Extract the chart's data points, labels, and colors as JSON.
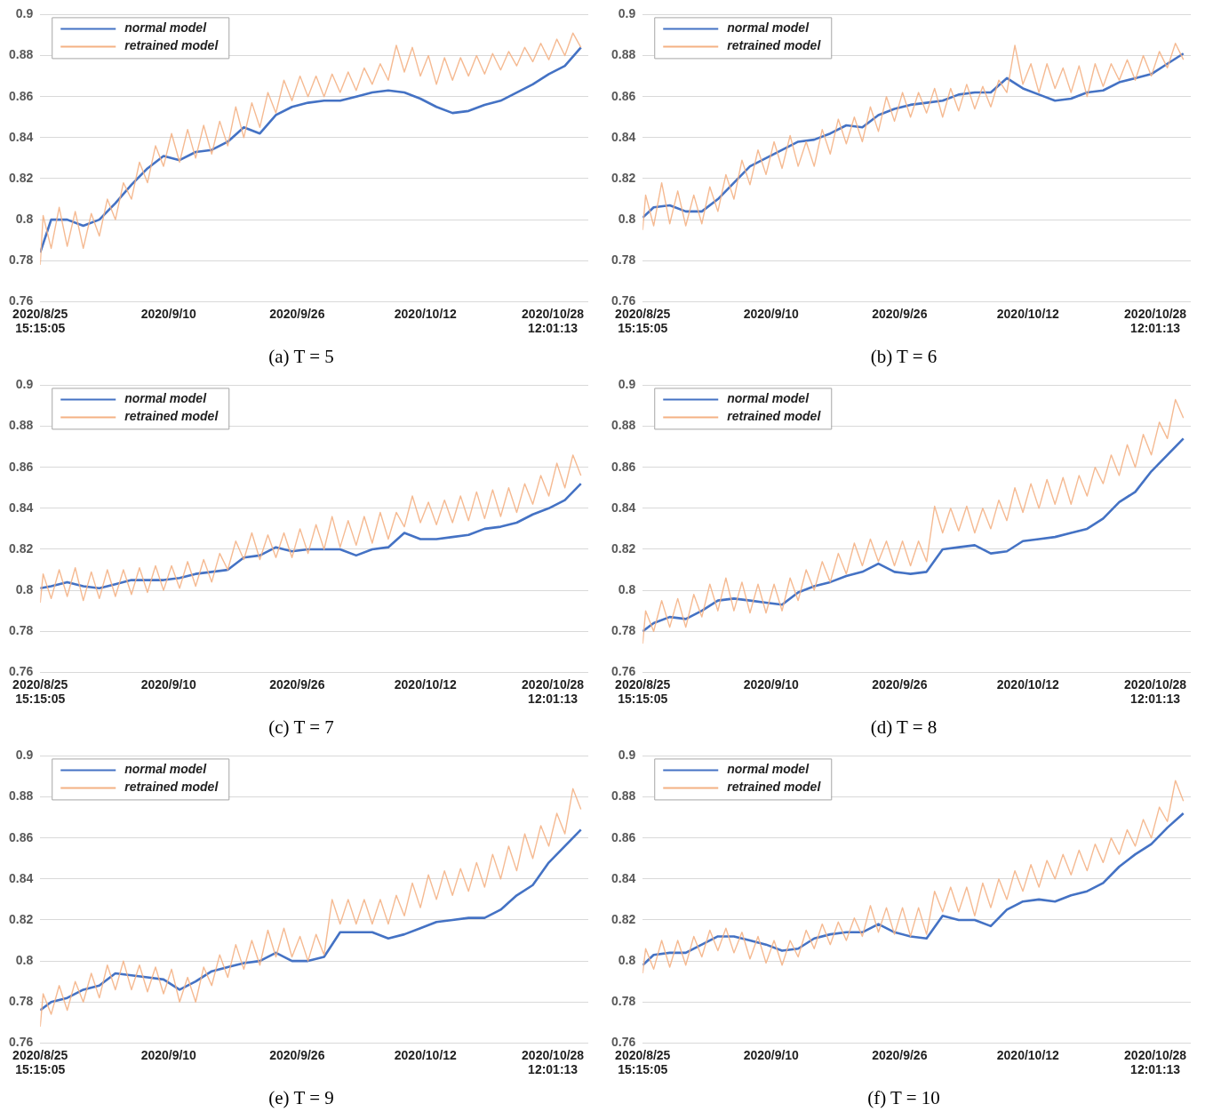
{
  "chart_data": [
    {
      "type": "line",
      "title": "(a) T = 5",
      "ylim": [
        0.76,
        0.9
      ],
      "yticks": [
        0.76,
        0.78,
        0.8,
        0.82,
        0.84,
        0.86,
        0.88,
        0.9
      ],
      "grid": "y",
      "legend": "top left",
      "marker": "none",
      "xlim": [
        "2020-08-25T15:15",
        "2020-11-01T22:00"
      ],
      "xticks": [
        {
          "value": "2020-08-25T15:15",
          "label": "2020/8/25 15:15:05"
        },
        {
          "value": "2020-09-10T15:15",
          "label": "2020/9/10"
        },
        {
          "value": "2020-09-26T15:15",
          "label": "2020/9/26"
        },
        {
          "value": "2020-10-12T15:15",
          "label": "2020/10/12"
        },
        {
          "value": "2020-10-28T12:01",
          "label": "2020/10/28 12:01:13"
        }
      ],
      "x": [
        "2020-08-25T15:15",
        "2020-08-26",
        "2020-08-27",
        "2020-08-28",
        "2020-08-29",
        "2020-08-30",
        "2020-08-31",
        "2020-09-01",
        "2020-09-02",
        "2020-09-03",
        "2020-09-04",
        "2020-09-05",
        "2020-09-06",
        "2020-09-07",
        "2020-09-08",
        "2020-09-09",
        "2020-09-10",
        "2020-09-11",
        "2020-09-12",
        "2020-09-13",
        "2020-09-14",
        "2020-09-15",
        "2020-09-16",
        "2020-09-17",
        "2020-09-18",
        "2020-09-19",
        "2020-09-20",
        "2020-09-21",
        "2020-09-22",
        "2020-09-23",
        "2020-09-24",
        "2020-09-25",
        "2020-09-26",
        "2020-09-27",
        "2020-09-28",
        "2020-09-29",
        "2020-09-30",
        "2020-10-01",
        "2020-10-02",
        "2020-10-03",
        "2020-10-04",
        "2020-10-05",
        "2020-10-06",
        "2020-10-07",
        "2020-10-08",
        "2020-10-09",
        "2020-10-10",
        "2020-10-11",
        "2020-10-12",
        "2020-10-13",
        "2020-10-14",
        "2020-10-15",
        "2020-10-16",
        "2020-10-17",
        "2020-10-18",
        "2020-10-19",
        "2020-10-20",
        "2020-10-21",
        "2020-10-22",
        "2020-10-23",
        "2020-10-24",
        "2020-10-25",
        "2020-10-26",
        "2020-10-27",
        "2020-10-28",
        "2020-10-29",
        "2020-10-30",
        "2020-10-31",
        "2020-11-01"
      ],
      "series": [
        {
          "name": "normal model",
          "color": "#4472c4",
          "x": [
            "2020-08-25T15:15",
            "2020-08-27",
            "2020-08-29",
            "2020-08-31",
            "2020-09-02",
            "2020-09-04",
            "2020-09-06",
            "2020-09-08",
            "2020-09-10",
            "2020-09-12",
            "2020-09-14",
            "2020-09-16",
            "2020-09-18",
            "2020-09-20",
            "2020-09-22",
            "2020-09-24",
            "2020-09-26",
            "2020-09-28",
            "2020-09-30",
            "2020-10-02",
            "2020-10-04",
            "2020-10-06",
            "2020-10-08",
            "2020-10-10",
            "2020-10-12",
            "2020-10-14",
            "2020-10-16",
            "2020-10-18",
            "2020-10-20",
            "2020-10-22",
            "2020-10-24",
            "2020-10-26",
            "2020-10-28",
            "2020-10-30",
            "2020-11-01"
          ],
          "values": [
            0.784,
            0.8,
            0.8,
            0.797,
            0.8,
            0.808,
            0.817,
            0.825,
            0.831,
            0.829,
            0.833,
            0.834,
            0.838,
            0.845,
            0.842,
            0.851,
            0.855,
            0.857,
            0.858,
            0.858,
            0.86,
            0.862,
            0.863,
            0.862,
            0.859,
            0.855,
            0.852,
            0.853,
            0.856,
            0.858,
            0.862,
            0.866,
            0.871,
            0.875,
            0.884
          ]
        },
        {
          "name": "retrained model",
          "color": "#f4b183",
          "values": [
            0.778,
            0.802,
            0.786,
            0.806,
            0.787,
            0.804,
            0.786,
            0.803,
            0.792,
            0.81,
            0.8,
            0.818,
            0.81,
            0.828,
            0.818,
            0.836,
            0.826,
            0.842,
            0.828,
            0.844,
            0.83,
            0.846,
            0.832,
            0.848,
            0.836,
            0.855,
            0.84,
            0.857,
            0.845,
            0.862,
            0.852,
            0.868,
            0.858,
            0.87,
            0.86,
            0.87,
            0.86,
            0.871,
            0.862,
            0.872,
            0.863,
            0.874,
            0.866,
            0.876,
            0.868,
            0.885,
            0.872,
            0.884,
            0.87,
            0.88,
            0.866,
            0.879,
            0.868,
            0.879,
            0.87,
            0.88,
            0.871,
            0.881,
            0.873,
            0.882,
            0.875,
            0.884,
            0.877,
            0.886,
            0.878,
            0.888,
            0.88,
            0.891,
            0.884
          ]
        }
      ]
    },
    {
      "type": "line",
      "title": "(b) T = 6",
      "ylim": [
        0.76,
        0.9
      ],
      "yticks": [
        0.76,
        0.78,
        0.8,
        0.82,
        0.84,
        0.86,
        0.88,
        0.9
      ],
      "grid": "y",
      "legend": "top left",
      "marker": "none",
      "xlim": [
        "2020-08-25T15:15",
        "2020-11-01T22:00"
      ],
      "xticks": [
        {
          "value": "2020-08-25T15:15",
          "label": "2020/8/25 15:15:05"
        },
        {
          "value": "2020-09-10T15:15",
          "label": "2020/9/10"
        },
        {
          "value": "2020-09-26T15:15",
          "label": "2020/9/26"
        },
        {
          "value": "2020-10-12T15:15",
          "label": "2020/10/12"
        },
        {
          "value": "2020-10-28T12:01",
          "label": "2020/10/28 12:01:13"
        }
      ],
      "x": [
        "2020-08-25T15:15",
        "2020-08-26",
        "2020-08-27",
        "2020-08-28",
        "2020-08-29",
        "2020-08-30",
        "2020-08-31",
        "2020-09-01",
        "2020-09-02",
        "2020-09-03",
        "2020-09-04",
        "2020-09-05",
        "2020-09-06",
        "2020-09-07",
        "2020-09-08",
        "2020-09-09",
        "2020-09-10",
        "2020-09-11",
        "2020-09-12",
        "2020-09-13",
        "2020-09-14",
        "2020-09-15",
        "2020-09-16",
        "2020-09-17",
        "2020-09-18",
        "2020-09-19",
        "2020-09-20",
        "2020-09-21",
        "2020-09-22",
        "2020-09-23",
        "2020-09-24",
        "2020-09-25",
        "2020-09-26",
        "2020-09-27",
        "2020-09-28",
        "2020-09-29",
        "2020-09-30",
        "2020-10-01",
        "2020-10-02",
        "2020-10-03",
        "2020-10-04",
        "2020-10-05",
        "2020-10-06",
        "2020-10-07",
        "2020-10-08",
        "2020-10-09",
        "2020-10-10",
        "2020-10-11",
        "2020-10-12",
        "2020-10-13",
        "2020-10-14",
        "2020-10-15",
        "2020-10-16",
        "2020-10-17",
        "2020-10-18",
        "2020-10-19",
        "2020-10-20",
        "2020-10-21",
        "2020-10-22",
        "2020-10-23",
        "2020-10-24",
        "2020-10-25",
        "2020-10-26",
        "2020-10-27",
        "2020-10-28",
        "2020-10-29",
        "2020-10-30",
        "2020-10-31",
        "2020-11-01"
      ],
      "series": [
        {
          "name": "normal model",
          "color": "#4472c4",
          "x": [
            "2020-08-25T15:15",
            "2020-08-27",
            "2020-08-29",
            "2020-08-31",
            "2020-09-02",
            "2020-09-04",
            "2020-09-06",
            "2020-09-08",
            "2020-09-10",
            "2020-09-12",
            "2020-09-14",
            "2020-09-16",
            "2020-09-18",
            "2020-09-20",
            "2020-09-22",
            "2020-09-24",
            "2020-09-26",
            "2020-09-28",
            "2020-09-30",
            "2020-10-02",
            "2020-10-04",
            "2020-10-06",
            "2020-10-08",
            "2020-10-10",
            "2020-10-12",
            "2020-10-14",
            "2020-10-16",
            "2020-10-18",
            "2020-10-20",
            "2020-10-22",
            "2020-10-24",
            "2020-10-26",
            "2020-10-28",
            "2020-10-30",
            "2020-11-01"
          ],
          "values": [
            0.801,
            0.806,
            0.807,
            0.804,
            0.804,
            0.81,
            0.818,
            0.826,
            0.83,
            0.834,
            0.838,
            0.839,
            0.842,
            0.846,
            0.845,
            0.851,
            0.854,
            0.856,
            0.857,
            0.858,
            0.861,
            0.862,
            0.862,
            0.869,
            0.864,
            0.861,
            0.858,
            0.859,
            0.862,
            0.863,
            0.867,
            0.869,
            0.871,
            0.876,
            0.881
          ]
        },
        {
          "name": "retrained model",
          "color": "#f4b183",
          "values": [
            0.795,
            0.812,
            0.797,
            0.818,
            0.798,
            0.814,
            0.797,
            0.812,
            0.798,
            0.816,
            0.804,
            0.822,
            0.81,
            0.829,
            0.817,
            0.834,
            0.822,
            0.838,
            0.825,
            0.841,
            0.826,
            0.838,
            0.826,
            0.844,
            0.832,
            0.849,
            0.837,
            0.85,
            0.838,
            0.855,
            0.843,
            0.86,
            0.848,
            0.862,
            0.85,
            0.862,
            0.852,
            0.864,
            0.85,
            0.864,
            0.853,
            0.866,
            0.854,
            0.865,
            0.855,
            0.868,
            0.862,
            0.885,
            0.866,
            0.876,
            0.862,
            0.876,
            0.864,
            0.874,
            0.862,
            0.875,
            0.86,
            0.876,
            0.865,
            0.876,
            0.868,
            0.878,
            0.868,
            0.88,
            0.87,
            0.882,
            0.874,
            0.886,
            0.878
          ]
        }
      ]
    },
    {
      "type": "line",
      "title": "(c) T = 7",
      "ylim": [
        0.76,
        0.9
      ],
      "yticks": [
        0.76,
        0.78,
        0.8,
        0.82,
        0.84,
        0.86,
        0.88,
        0.9
      ],
      "grid": "y",
      "legend": "top left",
      "marker": "none",
      "xlim": [
        "2020-08-25T15:15",
        "2020-11-01T22:00"
      ],
      "xticks": [
        {
          "value": "2020-08-25T15:15",
          "label": "2020/8/25 15:15:05"
        },
        {
          "value": "2020-09-10T15:15",
          "label": "2020/9/10"
        },
        {
          "value": "2020-09-26T15:15",
          "label": "2020/9/26"
        },
        {
          "value": "2020-10-12T15:15",
          "label": "2020/10/12"
        },
        {
          "value": "2020-10-28T12:01",
          "label": "2020/10/28 12:01:13"
        }
      ],
      "x": [
        "2020-08-25T15:15",
        "2020-08-26",
        "2020-08-27",
        "2020-08-28",
        "2020-08-29",
        "2020-08-30",
        "2020-08-31",
        "2020-09-01",
        "2020-09-02",
        "2020-09-03",
        "2020-09-04",
        "2020-09-05",
        "2020-09-06",
        "2020-09-07",
        "2020-09-08",
        "2020-09-09",
        "2020-09-10",
        "2020-09-11",
        "2020-09-12",
        "2020-09-13",
        "2020-09-14",
        "2020-09-15",
        "2020-09-16",
        "2020-09-17",
        "2020-09-18",
        "2020-09-19",
        "2020-09-20",
        "2020-09-21",
        "2020-09-22",
        "2020-09-23",
        "2020-09-24",
        "2020-09-25",
        "2020-09-26",
        "2020-09-27",
        "2020-09-28",
        "2020-09-29",
        "2020-09-30",
        "2020-10-01",
        "2020-10-02",
        "2020-10-03",
        "2020-10-04",
        "2020-10-05",
        "2020-10-06",
        "2020-10-07",
        "2020-10-08",
        "2020-10-09",
        "2020-10-10",
        "2020-10-11",
        "2020-10-12",
        "2020-10-13",
        "2020-10-14",
        "2020-10-15",
        "2020-10-16",
        "2020-10-17",
        "2020-10-18",
        "2020-10-19",
        "2020-10-20",
        "2020-10-21",
        "2020-10-22",
        "2020-10-23",
        "2020-10-24",
        "2020-10-25",
        "2020-10-26",
        "2020-10-27",
        "2020-10-28",
        "2020-10-29",
        "2020-10-30",
        "2020-10-31",
        "2020-11-01"
      ],
      "series": [
        {
          "name": "normal model",
          "color": "#4472c4",
          "x": [
            "2020-08-25T15:15",
            "2020-08-27",
            "2020-08-29",
            "2020-08-31",
            "2020-09-02",
            "2020-09-04",
            "2020-09-06",
            "2020-09-08",
            "2020-09-10",
            "2020-09-12",
            "2020-09-14",
            "2020-09-16",
            "2020-09-18",
            "2020-09-20",
            "2020-09-22",
            "2020-09-24",
            "2020-09-26",
            "2020-09-28",
            "2020-09-30",
            "2020-10-02",
            "2020-10-04",
            "2020-10-06",
            "2020-10-08",
            "2020-10-10",
            "2020-10-12",
            "2020-10-14",
            "2020-10-16",
            "2020-10-18",
            "2020-10-20",
            "2020-10-22",
            "2020-10-24",
            "2020-10-26",
            "2020-10-28",
            "2020-10-30",
            "2020-11-01"
          ],
          "values": [
            0.801,
            0.802,
            0.804,
            0.802,
            0.801,
            0.803,
            0.805,
            0.805,
            0.805,
            0.806,
            0.808,
            0.809,
            0.81,
            0.816,
            0.817,
            0.821,
            0.819,
            0.82,
            0.82,
            0.82,
            0.817,
            0.82,
            0.821,
            0.828,
            0.825,
            0.825,
            0.826,
            0.827,
            0.83,
            0.831,
            0.833,
            0.837,
            0.84,
            0.844,
            0.852
          ]
        },
        {
          "name": "retrained model",
          "color": "#f4b183",
          "values": [
            0.794,
            0.808,
            0.796,
            0.81,
            0.797,
            0.811,
            0.795,
            0.809,
            0.796,
            0.81,
            0.797,
            0.81,
            0.798,
            0.811,
            0.799,
            0.812,
            0.8,
            0.812,
            0.801,
            0.814,
            0.802,
            0.815,
            0.804,
            0.818,
            0.81,
            0.824,
            0.815,
            0.828,
            0.815,
            0.827,
            0.816,
            0.828,
            0.816,
            0.83,
            0.818,
            0.832,
            0.82,
            0.836,
            0.821,
            0.834,
            0.822,
            0.836,
            0.823,
            0.838,
            0.825,
            0.838,
            0.831,
            0.846,
            0.833,
            0.843,
            0.832,
            0.844,
            0.833,
            0.846,
            0.834,
            0.848,
            0.835,
            0.849,
            0.836,
            0.85,
            0.838,
            0.852,
            0.842,
            0.856,
            0.846,
            0.862,
            0.85,
            0.866,
            0.856
          ]
        }
      ]
    },
    {
      "type": "line",
      "title": "(d) T = 8",
      "ylim": [
        0.76,
        0.9
      ],
      "yticks": [
        0.76,
        0.78,
        0.8,
        0.82,
        0.84,
        0.86,
        0.88,
        0.9
      ],
      "grid": "y",
      "legend": "top left",
      "marker": "none",
      "xlim": [
        "2020-08-25T15:15",
        "2020-11-01T22:00"
      ],
      "xticks": [
        {
          "value": "2020-08-25T15:15",
          "label": "2020/8/25 15:15:05"
        },
        {
          "value": "2020-09-10T15:15",
          "label": "2020/9/10"
        },
        {
          "value": "2020-09-26T15:15",
          "label": "2020/9/26"
        },
        {
          "value": "2020-10-12T15:15",
          "label": "2020/10/12"
        },
        {
          "value": "2020-10-28T12:01",
          "label": "2020/10/28 12:01:13"
        }
      ],
      "x": [
        "2020-08-25T15:15",
        "2020-08-26",
        "2020-08-27",
        "2020-08-28",
        "2020-08-29",
        "2020-08-30",
        "2020-08-31",
        "2020-09-01",
        "2020-09-02",
        "2020-09-03",
        "2020-09-04",
        "2020-09-05",
        "2020-09-06",
        "2020-09-07",
        "2020-09-08",
        "2020-09-09",
        "2020-09-10",
        "2020-09-11",
        "2020-09-12",
        "2020-09-13",
        "2020-09-14",
        "2020-09-15",
        "2020-09-16",
        "2020-09-17",
        "2020-09-18",
        "2020-09-19",
        "2020-09-20",
        "2020-09-21",
        "2020-09-22",
        "2020-09-23",
        "2020-09-24",
        "2020-09-25",
        "2020-09-26",
        "2020-09-27",
        "2020-09-28",
        "2020-09-29",
        "2020-09-30",
        "2020-10-01",
        "2020-10-02",
        "2020-10-03",
        "2020-10-04",
        "2020-10-05",
        "2020-10-06",
        "2020-10-07",
        "2020-10-08",
        "2020-10-09",
        "2020-10-10",
        "2020-10-11",
        "2020-10-12",
        "2020-10-13",
        "2020-10-14",
        "2020-10-15",
        "2020-10-16",
        "2020-10-17",
        "2020-10-18",
        "2020-10-19",
        "2020-10-20",
        "2020-10-21",
        "2020-10-22",
        "2020-10-23",
        "2020-10-24",
        "2020-10-25",
        "2020-10-26",
        "2020-10-27",
        "2020-10-28",
        "2020-10-29",
        "2020-10-30",
        "2020-10-31",
        "2020-11-01"
      ],
      "series": [
        {
          "name": "normal model",
          "color": "#4472c4",
          "x": [
            "2020-08-25T15:15",
            "2020-08-27",
            "2020-08-29",
            "2020-08-31",
            "2020-09-02",
            "2020-09-04",
            "2020-09-06",
            "2020-09-08",
            "2020-09-10",
            "2020-09-12",
            "2020-09-14",
            "2020-09-16",
            "2020-09-18",
            "2020-09-20",
            "2020-09-22",
            "2020-09-24",
            "2020-09-26",
            "2020-09-28",
            "2020-09-30",
            "2020-10-02",
            "2020-10-04",
            "2020-10-06",
            "2020-10-08",
            "2020-10-10",
            "2020-10-12",
            "2020-10-14",
            "2020-10-16",
            "2020-10-18",
            "2020-10-20",
            "2020-10-22",
            "2020-10-24",
            "2020-10-26",
            "2020-10-28",
            "2020-10-30",
            "2020-11-01"
          ],
          "values": [
            0.78,
            0.784,
            0.787,
            0.786,
            0.79,
            0.795,
            0.796,
            0.795,
            0.794,
            0.793,
            0.799,
            0.802,
            0.804,
            0.807,
            0.809,
            0.813,
            0.809,
            0.808,
            0.809,
            0.82,
            0.821,
            0.822,
            0.818,
            0.819,
            0.824,
            0.825,
            0.826,
            0.828,
            0.83,
            0.835,
            0.843,
            0.848,
            0.858,
            0.866,
            0.874
          ]
        },
        {
          "name": "retrained model",
          "color": "#f4b183",
          "values": [
            0.774,
            0.79,
            0.78,
            0.795,
            0.782,
            0.796,
            0.782,
            0.798,
            0.787,
            0.803,
            0.79,
            0.806,
            0.79,
            0.804,
            0.789,
            0.803,
            0.789,
            0.803,
            0.79,
            0.806,
            0.795,
            0.81,
            0.8,
            0.814,
            0.804,
            0.818,
            0.808,
            0.823,
            0.812,
            0.825,
            0.814,
            0.824,
            0.812,
            0.824,
            0.812,
            0.824,
            0.814,
            0.841,
            0.828,
            0.84,
            0.829,
            0.841,
            0.828,
            0.84,
            0.83,
            0.844,
            0.834,
            0.85,
            0.838,
            0.852,
            0.84,
            0.854,
            0.842,
            0.855,
            0.842,
            0.856,
            0.846,
            0.86,
            0.852,
            0.866,
            0.856,
            0.871,
            0.86,
            0.876,
            0.866,
            0.882,
            0.874,
            0.893,
            0.884
          ]
        }
      ]
    },
    {
      "type": "line",
      "title": "(e) T = 9",
      "ylim": [
        0.76,
        0.9
      ],
      "yticks": [
        0.76,
        0.78,
        0.8,
        0.82,
        0.84,
        0.86,
        0.88,
        0.9
      ],
      "grid": "y",
      "legend": "top left",
      "marker": "none",
      "xlim": [
        "2020-08-25T15:15",
        "2020-11-01T22:00"
      ],
      "xticks": [
        {
          "value": "2020-08-25T15:15",
          "label": "2020/8/25 15:15:05"
        },
        {
          "value": "2020-09-10T15:15",
          "label": "2020/9/10"
        },
        {
          "value": "2020-09-26T15:15",
          "label": "2020/9/26"
        },
        {
          "value": "2020-10-12T15:15",
          "label": "2020/10/12"
        },
        {
          "value": "2020-10-28T12:01",
          "label": "2020/10/28 12:01:13"
        }
      ],
      "x": [
        "2020-08-25T15:15",
        "2020-08-26",
        "2020-08-27",
        "2020-08-28",
        "2020-08-29",
        "2020-08-30",
        "2020-08-31",
        "2020-09-01",
        "2020-09-02",
        "2020-09-03",
        "2020-09-04",
        "2020-09-05",
        "2020-09-06",
        "2020-09-07",
        "2020-09-08",
        "2020-09-09",
        "2020-09-10",
        "2020-09-11",
        "2020-09-12",
        "2020-09-13",
        "2020-09-14",
        "2020-09-15",
        "2020-09-16",
        "2020-09-17",
        "2020-09-18",
        "2020-09-19",
        "2020-09-20",
        "2020-09-21",
        "2020-09-22",
        "2020-09-23",
        "2020-09-24",
        "2020-09-25",
        "2020-09-26",
        "2020-09-27",
        "2020-09-28",
        "2020-09-29",
        "2020-09-30",
        "2020-10-01",
        "2020-10-02",
        "2020-10-03",
        "2020-10-04",
        "2020-10-05",
        "2020-10-06",
        "2020-10-07",
        "2020-10-08",
        "2020-10-09",
        "2020-10-10",
        "2020-10-11",
        "2020-10-12",
        "2020-10-13",
        "2020-10-14",
        "2020-10-15",
        "2020-10-16",
        "2020-10-17",
        "2020-10-18",
        "2020-10-19",
        "2020-10-20",
        "2020-10-21",
        "2020-10-22",
        "2020-10-23",
        "2020-10-24",
        "2020-10-25",
        "2020-10-26",
        "2020-10-27",
        "2020-10-28",
        "2020-10-29",
        "2020-10-30",
        "2020-10-31",
        "2020-11-01"
      ],
      "series": [
        {
          "name": "normal model",
          "color": "#4472c4",
          "x": [
            "2020-08-25T15:15",
            "2020-08-27",
            "2020-08-29",
            "2020-08-31",
            "2020-09-02",
            "2020-09-04",
            "2020-09-06",
            "2020-09-08",
            "2020-09-10",
            "2020-09-12",
            "2020-09-14",
            "2020-09-16",
            "2020-09-18",
            "2020-09-20",
            "2020-09-22",
            "2020-09-24",
            "2020-09-26",
            "2020-09-28",
            "2020-09-30",
            "2020-10-02",
            "2020-10-04",
            "2020-10-06",
            "2020-10-08",
            "2020-10-10",
            "2020-10-12",
            "2020-10-14",
            "2020-10-16",
            "2020-10-18",
            "2020-10-20",
            "2020-10-22",
            "2020-10-24",
            "2020-10-26",
            "2020-10-28",
            "2020-10-30",
            "2020-11-01"
          ],
          "values": [
            0.776,
            0.78,
            0.782,
            0.786,
            0.788,
            0.794,
            0.793,
            0.792,
            0.791,
            0.786,
            0.79,
            0.795,
            0.797,
            0.799,
            0.8,
            0.804,
            0.8,
            0.8,
            0.802,
            0.814,
            0.814,
            0.814,
            0.811,
            0.813,
            0.816,
            0.819,
            0.82,
            0.821,
            0.821,
            0.825,
            0.832,
            0.837,
            0.848,
            0.856,
            0.864
          ]
        },
        {
          "name": "retrained model",
          "color": "#f4b183",
          "values": [
            0.768,
            0.784,
            0.774,
            0.788,
            0.776,
            0.79,
            0.78,
            0.794,
            0.782,
            0.798,
            0.786,
            0.8,
            0.786,
            0.798,
            0.785,
            0.797,
            0.784,
            0.796,
            0.78,
            0.792,
            0.78,
            0.797,
            0.788,
            0.803,
            0.792,
            0.808,
            0.796,
            0.81,
            0.798,
            0.815,
            0.802,
            0.816,
            0.802,
            0.812,
            0.8,
            0.813,
            0.803,
            0.83,
            0.818,
            0.83,
            0.818,
            0.83,
            0.818,
            0.83,
            0.818,
            0.832,
            0.822,
            0.838,
            0.826,
            0.842,
            0.83,
            0.844,
            0.832,
            0.845,
            0.834,
            0.848,
            0.836,
            0.852,
            0.84,
            0.856,
            0.844,
            0.862,
            0.85,
            0.866,
            0.856,
            0.872,
            0.862,
            0.884,
            0.874
          ]
        }
      ]
    },
    {
      "type": "line",
      "title": "(f) T = 10",
      "ylim": [
        0.76,
        0.9
      ],
      "yticks": [
        0.76,
        0.78,
        0.8,
        0.82,
        0.84,
        0.86,
        0.88,
        0.9
      ],
      "grid": "y",
      "legend": "top left",
      "marker": "none",
      "xlim": [
        "2020-08-25T15:15",
        "2020-11-01T22:00"
      ],
      "xticks": [
        {
          "value": "2020-08-25T15:15",
          "label": "2020/8/25 15:15:05"
        },
        {
          "value": "2020-09-10T15:15",
          "label": "2020/9/10"
        },
        {
          "value": "2020-09-26T15:15",
          "label": "2020/9/26"
        },
        {
          "value": "2020-10-12T15:15",
          "label": "2020/10/12"
        },
        {
          "value": "2020-10-28T12:01",
          "label": "2020/10/28 12:01:13"
        }
      ],
      "x": [
        "2020-08-25T15:15",
        "2020-08-26",
        "2020-08-27",
        "2020-08-28",
        "2020-08-29",
        "2020-08-30",
        "2020-08-31",
        "2020-09-01",
        "2020-09-02",
        "2020-09-03",
        "2020-09-04",
        "2020-09-05",
        "2020-09-06",
        "2020-09-07",
        "2020-09-08",
        "2020-09-09",
        "2020-09-10",
        "2020-09-11",
        "2020-09-12",
        "2020-09-13",
        "2020-09-14",
        "2020-09-15",
        "2020-09-16",
        "2020-09-17",
        "2020-09-18",
        "2020-09-19",
        "2020-09-20",
        "2020-09-21",
        "2020-09-22",
        "2020-09-23",
        "2020-09-24",
        "2020-09-25",
        "2020-09-26",
        "2020-09-27",
        "2020-09-28",
        "2020-09-29",
        "2020-09-30",
        "2020-10-01",
        "2020-10-02",
        "2020-10-03",
        "2020-10-04",
        "2020-10-05",
        "2020-10-06",
        "2020-10-07",
        "2020-10-08",
        "2020-10-09",
        "2020-10-10",
        "2020-10-11",
        "2020-10-12",
        "2020-10-13",
        "2020-10-14",
        "2020-10-15",
        "2020-10-16",
        "2020-10-17",
        "2020-10-18",
        "2020-10-19",
        "2020-10-20",
        "2020-10-21",
        "2020-10-22",
        "2020-10-23",
        "2020-10-24",
        "2020-10-25",
        "2020-10-26",
        "2020-10-27",
        "2020-10-28",
        "2020-10-29",
        "2020-10-30",
        "2020-10-31",
        "2020-11-01"
      ],
      "series": [
        {
          "name": "normal model",
          "color": "#4472c4",
          "x": [
            "2020-08-25T15:15",
            "2020-08-27",
            "2020-08-29",
            "2020-08-31",
            "2020-09-02",
            "2020-09-04",
            "2020-09-06",
            "2020-09-08",
            "2020-09-10",
            "2020-09-12",
            "2020-09-14",
            "2020-09-16",
            "2020-09-18",
            "2020-09-20",
            "2020-09-22",
            "2020-09-24",
            "2020-09-26",
            "2020-09-28",
            "2020-09-30",
            "2020-10-02",
            "2020-10-04",
            "2020-10-06",
            "2020-10-08",
            "2020-10-10",
            "2020-10-12",
            "2020-10-14",
            "2020-10-16",
            "2020-10-18",
            "2020-10-20",
            "2020-10-22",
            "2020-10-24",
            "2020-10-26",
            "2020-10-28",
            "2020-10-30",
            "2020-11-01"
          ],
          "values": [
            0.798,
            0.803,
            0.804,
            0.804,
            0.808,
            0.812,
            0.812,
            0.81,
            0.808,
            0.805,
            0.806,
            0.811,
            0.813,
            0.814,
            0.814,
            0.818,
            0.814,
            0.812,
            0.811,
            0.822,
            0.82,
            0.82,
            0.817,
            0.825,
            0.829,
            0.83,
            0.829,
            0.832,
            0.834,
            0.838,
            0.846,
            0.852,
            0.857,
            0.865,
            0.872
          ]
        },
        {
          "name": "retrained model",
          "color": "#f4b183",
          "values": [
            0.794,
            0.806,
            0.796,
            0.81,
            0.797,
            0.81,
            0.798,
            0.812,
            0.802,
            0.815,
            0.805,
            0.816,
            0.804,
            0.814,
            0.801,
            0.812,
            0.799,
            0.81,
            0.798,
            0.81,
            0.802,
            0.815,
            0.806,
            0.818,
            0.808,
            0.819,
            0.81,
            0.821,
            0.812,
            0.827,
            0.814,
            0.826,
            0.813,
            0.826,
            0.812,
            0.826,
            0.813,
            0.834,
            0.824,
            0.836,
            0.824,
            0.836,
            0.822,
            0.838,
            0.826,
            0.84,
            0.83,
            0.844,
            0.834,
            0.847,
            0.836,
            0.849,
            0.84,
            0.852,
            0.842,
            0.854,
            0.844,
            0.857,
            0.848,
            0.86,
            0.852,
            0.864,
            0.856,
            0.869,
            0.86,
            0.875,
            0.868,
            0.888,
            0.878
          ]
        }
      ]
    }
  ]
}
